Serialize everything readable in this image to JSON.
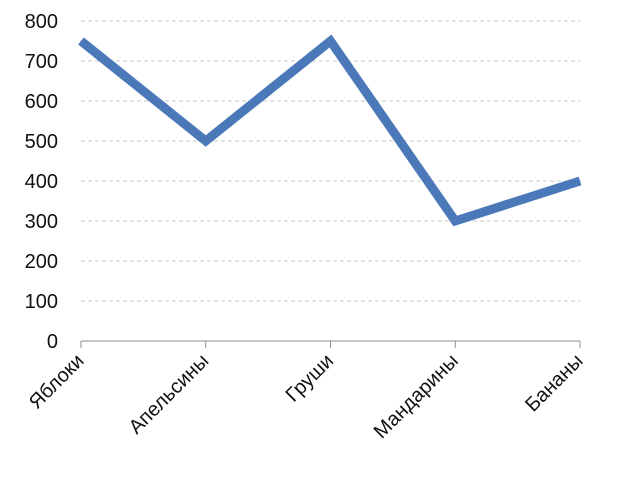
{
  "chart_data": {
    "type": "line",
    "categories": [
      "Яблоки",
      "Апельсины",
      "Груши",
      "Мандарины",
      "Бананы"
    ],
    "series": [
      {
        "values": [
          750,
          500,
          750,
          300,
          400
        ],
        "color": "#4a78b8"
      }
    ],
    "title": "",
    "xlabel": "",
    "ylabel": "",
    "ylim": [
      0,
      800
    ],
    "yticks": [
      0,
      100,
      200,
      300,
      400,
      500,
      600,
      700,
      800
    ],
    "grid": true,
    "legend": "none"
  }
}
